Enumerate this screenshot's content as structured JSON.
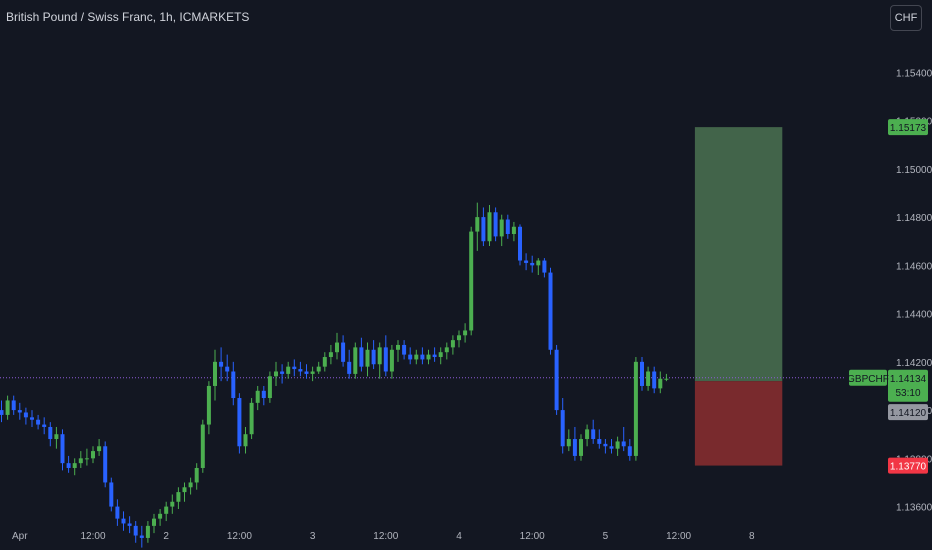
{
  "header": {
    "title": "British Pound / Swiss Franc, 1h, ICMARKETS",
    "currency_button": "CHF"
  },
  "price_tags": {
    "target": "1.15173",
    "symbol": "GBPCHF",
    "last": "1.14134",
    "countdown": "53:10",
    "entry": "1.14120",
    "stop": "1.13770"
  },
  "colors": {
    "background": "#131722",
    "up": "#4caf50",
    "down": "#2962ff",
    "profit_zone": "#42644a",
    "loss_zone": "#792a2d",
    "target_tag": "#4caf50",
    "stop_tag": "#f23645",
    "entry_tag": "#9598a1",
    "last_line": "#8e5bd8"
  },
  "chart_data": {
    "type": "candlestick",
    "title": "British Pound / Swiss Franc, 1h, ICMARKETS",
    "ylim": [
      1.1342,
      1.157
    ],
    "y_ticks": [
      1.136,
      1.138,
      1.14,
      1.142,
      1.144,
      1.146,
      1.148,
      1.15,
      1.152,
      1.154
    ],
    "y_tick_labels": [
      "1.13600",
      "1.13800",
      "1.14000",
      "1.14200",
      "1.14400",
      "1.14600",
      "1.14800",
      "1.15000",
      "1.15200",
      "1.15400"
    ],
    "x_ticks": [
      {
        "idx": 3,
        "label": "Apr"
      },
      {
        "idx": 15,
        "label": "12:00"
      },
      {
        "idx": 27,
        "label": "2"
      },
      {
        "idx": 39,
        "label": "12:00"
      },
      {
        "idx": 51,
        "label": "3"
      },
      {
        "idx": 63,
        "label": "12:00"
      },
      {
        "idx": 75,
        "label": "4"
      },
      {
        "idx": 87,
        "label": "12:00"
      },
      {
        "idx": 99,
        "label": "5"
      },
      {
        "idx": 111,
        "label": "12:00"
      },
      {
        "idx": 123,
        "label": "8"
      }
    ],
    "candles": [
      [
        1.14,
        1.1404,
        1.1395,
        1.1398
      ],
      [
        1.1398,
        1.1406,
        1.1396,
        1.1404
      ],
      [
        1.1404,
        1.1406,
        1.1398,
        1.14
      ],
      [
        1.14,
        1.1403,
        1.1396,
        1.1399
      ],
      [
        1.1399,
        1.1401,
        1.1394,
        1.1397
      ],
      [
        1.1397,
        1.14,
        1.1393,
        1.1396
      ],
      [
        1.1396,
        1.1398,
        1.1392,
        1.1394
      ],
      [
        1.1394,
        1.1397,
        1.139,
        1.1393
      ],
      [
        1.1393,
        1.1395,
        1.1385,
        1.1388
      ],
      [
        1.1388,
        1.1393,
        1.1384,
        1.139
      ],
      [
        1.139,
        1.1392,
        1.1375,
        1.1378
      ],
      [
        1.1378,
        1.1381,
        1.1374,
        1.1376
      ],
      [
        1.1376,
        1.138,
        1.1373,
        1.1378
      ],
      [
        1.1378,
        1.1383,
        1.1376,
        1.138
      ],
      [
        1.138,
        1.1384,
        1.1377,
        1.138
      ],
      [
        1.138,
        1.1385,
        1.1378,
        1.1383
      ],
      [
        1.1383,
        1.1388,
        1.1381,
        1.1385
      ],
      [
        1.1385,
        1.1387,
        1.1368,
        1.137
      ],
      [
        1.137,
        1.1372,
        1.1358,
        1.136
      ],
      [
        1.136,
        1.1363,
        1.1352,
        1.1355
      ],
      [
        1.1355,
        1.1358,
        1.135,
        1.1353
      ],
      [
        1.1353,
        1.1356,
        1.1349,
        1.1352
      ],
      [
        1.1352,
        1.1354,
        1.1345,
        1.1348
      ],
      [
        1.1348,
        1.1352,
        1.1343,
        1.1347
      ],
      [
        1.1347,
        1.1354,
        1.1345,
        1.1352
      ],
      [
        1.1352,
        1.1357,
        1.1349,
        1.1355
      ],
      [
        1.1355,
        1.1359,
        1.1352,
        1.1357
      ],
      [
        1.1357,
        1.1362,
        1.1354,
        1.136
      ],
      [
        1.136,
        1.1365,
        1.1357,
        1.1362
      ],
      [
        1.1362,
        1.1368,
        1.1359,
        1.1366
      ],
      [
        1.1366,
        1.137,
        1.1362,
        1.1368
      ],
      [
        1.1368,
        1.1372,
        1.1365,
        1.137
      ],
      [
        1.137,
        1.1378,
        1.1367,
        1.1376
      ],
      [
        1.1376,
        1.1396,
        1.1374,
        1.1394
      ],
      [
        1.1394,
        1.1412,
        1.139,
        1.141
      ],
      [
        1.141,
        1.1425,
        1.1404,
        1.142
      ],
      [
        1.142,
        1.1426,
        1.1412,
        1.1418
      ],
      [
        1.1418,
        1.1423,
        1.1412,
        1.1416
      ],
      [
        1.1416,
        1.142,
        1.1402,
        1.1405
      ],
      [
        1.1405,
        1.1407,
        1.1382,
        1.1385
      ],
      [
        1.1385,
        1.1393,
        1.1382,
        1.139
      ],
      [
        1.139,
        1.1405,
        1.1388,
        1.1403
      ],
      [
        1.1403,
        1.141,
        1.14,
        1.1408
      ],
      [
        1.1408,
        1.141,
        1.1402,
        1.1405
      ],
      [
        1.1405,
        1.1416,
        1.1403,
        1.1414
      ],
      [
        1.1414,
        1.142,
        1.141,
        1.1416
      ],
      [
        1.1416,
        1.1419,
        1.1411,
        1.1415
      ],
      [
        1.1415,
        1.142,
        1.1413,
        1.1418
      ],
      [
        1.1418,
        1.1421,
        1.1414,
        1.1417
      ],
      [
        1.1417,
        1.142,
        1.1414,
        1.1416
      ],
      [
        1.1416,
        1.1419,
        1.1413,
        1.1415
      ],
      [
        1.1415,
        1.1418,
        1.1412,
        1.1416
      ],
      [
        1.1416,
        1.142,
        1.1415,
        1.1418
      ],
      [
        1.1418,
        1.1424,
        1.1416,
        1.1422
      ],
      [
        1.1422,
        1.1427,
        1.1419,
        1.1424
      ],
      [
        1.1424,
        1.1432,
        1.1421,
        1.1428
      ],
      [
        1.1428,
        1.1431,
        1.1418,
        1.142
      ],
      [
        1.142,
        1.1425,
        1.1413,
        1.1415
      ],
      [
        1.1415,
        1.1428,
        1.1413,
        1.1426
      ],
      [
        1.1426,
        1.143,
        1.1416,
        1.1418
      ],
      [
        1.1418,
        1.1428,
        1.1414,
        1.1425
      ],
      [
        1.1425,
        1.1429,
        1.1417,
        1.1419
      ],
      [
        1.1419,
        1.1428,
        1.1413,
        1.1426
      ],
      [
        1.1426,
        1.1431,
        1.1414,
        1.1416
      ],
      [
        1.1416,
        1.1427,
        1.1413,
        1.1425
      ],
      [
        1.1425,
        1.1429,
        1.142,
        1.1427
      ],
      [
        1.1427,
        1.1429,
        1.1421,
        1.1423
      ],
      [
        1.1423,
        1.1426,
        1.1419,
        1.1421
      ],
      [
        1.1421,
        1.1425,
        1.1419,
        1.1423
      ],
      [
        1.1423,
        1.1426,
        1.1419,
        1.1421
      ],
      [
        1.1421,
        1.1425,
        1.1419,
        1.1423
      ],
      [
        1.1423,
        1.1426,
        1.142,
        1.1422
      ],
      [
        1.1422,
        1.1426,
        1.1419,
        1.1424
      ],
      [
        1.1424,
        1.1428,
        1.1421,
        1.1426
      ],
      [
        1.1426,
        1.1431,
        1.1423,
        1.1429
      ],
      [
        1.1429,
        1.1433,
        1.1426,
        1.1431
      ],
      [
        1.1431,
        1.1436,
        1.1428,
        1.1433
      ],
      [
        1.1433,
        1.1476,
        1.1431,
        1.1474
      ],
      [
        1.1474,
        1.1486,
        1.1466,
        1.148
      ],
      [
        1.148,
        1.1484,
        1.1468,
        1.147
      ],
      [
        1.147,
        1.1485,
        1.1468,
        1.1482
      ],
      [
        1.1482,
        1.1484,
        1.147,
        1.1472
      ],
      [
        1.1472,
        1.1481,
        1.1468,
        1.1479
      ],
      [
        1.1479,
        1.1481,
        1.1471,
        1.1473
      ],
      [
        1.1473,
        1.1478,
        1.147,
        1.1476
      ],
      [
        1.1476,
        1.1477,
        1.146,
        1.1462
      ],
      [
        1.1462,
        1.1465,
        1.1458,
        1.1461
      ],
      [
        1.1461,
        1.1464,
        1.1457,
        1.146
      ],
      [
        1.146,
        1.1463,
        1.1456,
        1.1462
      ],
      [
        1.1462,
        1.1463,
        1.1455,
        1.1457
      ],
      [
        1.1457,
        1.1459,
        1.1423,
        1.1425
      ],
      [
        1.1425,
        1.1427,
        1.1398,
        1.14
      ],
      [
        1.14,
        1.1405,
        1.1382,
        1.1385
      ],
      [
        1.1385,
        1.1392,
        1.1383,
        1.1388
      ],
      [
        1.1388,
        1.1393,
        1.1379,
        1.1381
      ],
      [
        1.1381,
        1.139,
        1.1379,
        1.1388
      ],
      [
        1.1388,
        1.1394,
        1.1385,
        1.1392
      ],
      [
        1.1392,
        1.1396,
        1.1386,
        1.1388
      ],
      [
        1.1388,
        1.1392,
        1.1384,
        1.1386
      ],
      [
        1.1386,
        1.1388,
        1.1382,
        1.1385
      ],
      [
        1.1385,
        1.1388,
        1.1382,
        1.1384
      ],
      [
        1.1384,
        1.1389,
        1.1381,
        1.1387
      ],
      [
        1.1387,
        1.1393,
        1.1383,
        1.1385
      ],
      [
        1.1385,
        1.1388,
        1.1379,
        1.1381
      ],
      [
        1.1381,
        1.1422,
        1.1379,
        1.142
      ],
      [
        1.142,
        1.1422,
        1.1408,
        1.141
      ],
      [
        1.141,
        1.1418,
        1.1408,
        1.1416
      ],
      [
        1.1416,
        1.1418,
        1.1407,
        1.1409
      ],
      [
        1.1409,
        1.1416,
        1.1407,
        1.1413
      ],
      [
        1.1413,
        1.1415,
        1.1412,
        1.1413
      ]
    ],
    "position": {
      "type": "long",
      "entry": 1.1412,
      "target": 1.15173,
      "stop": 1.1377,
      "start_idx": 114,
      "end_idx": 128
    },
    "last_price": 1.14134
  }
}
